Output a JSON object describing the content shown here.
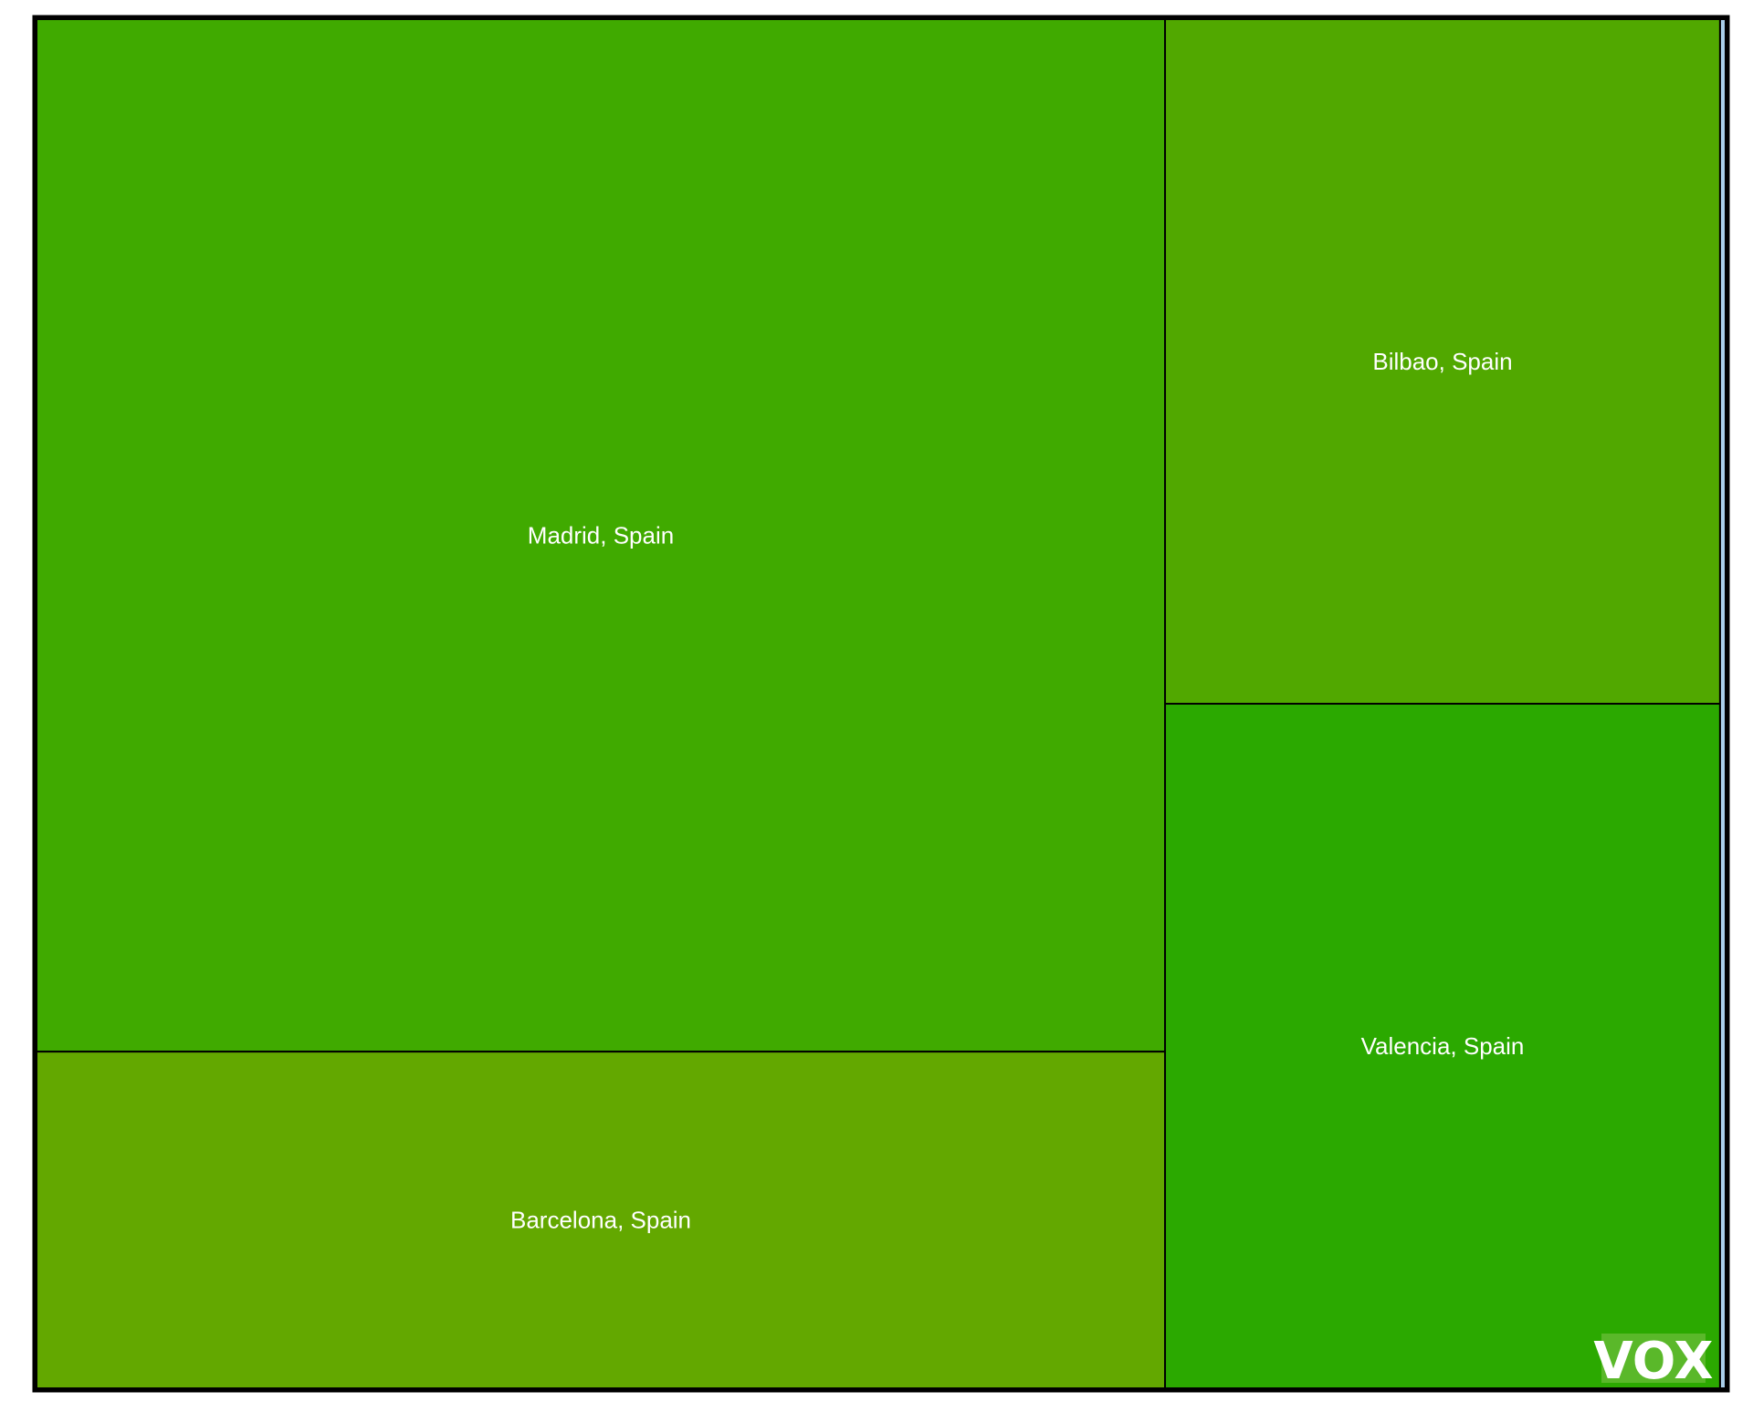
{
  "chart_data": {
    "type": "treemap",
    "items": [
      {
        "label": "Madrid, Spain",
        "value": 920,
        "color": "#40aa00"
      },
      {
        "label": "Barcelona, Spain",
        "value": 300,
        "color": "#63a800"
      },
      {
        "label": "Bilbao, Spain",
        "value": 300,
        "color": "#51a800"
      },
      {
        "label": "Valencia, Spain",
        "value": 300,
        "color": "#2ba900"
      },
      {
        "label": "",
        "value": 6,
        "color": "#a9cde8"
      }
    ]
  },
  "logo": {
    "text": "VOX",
    "color": "#5ab82a"
  }
}
